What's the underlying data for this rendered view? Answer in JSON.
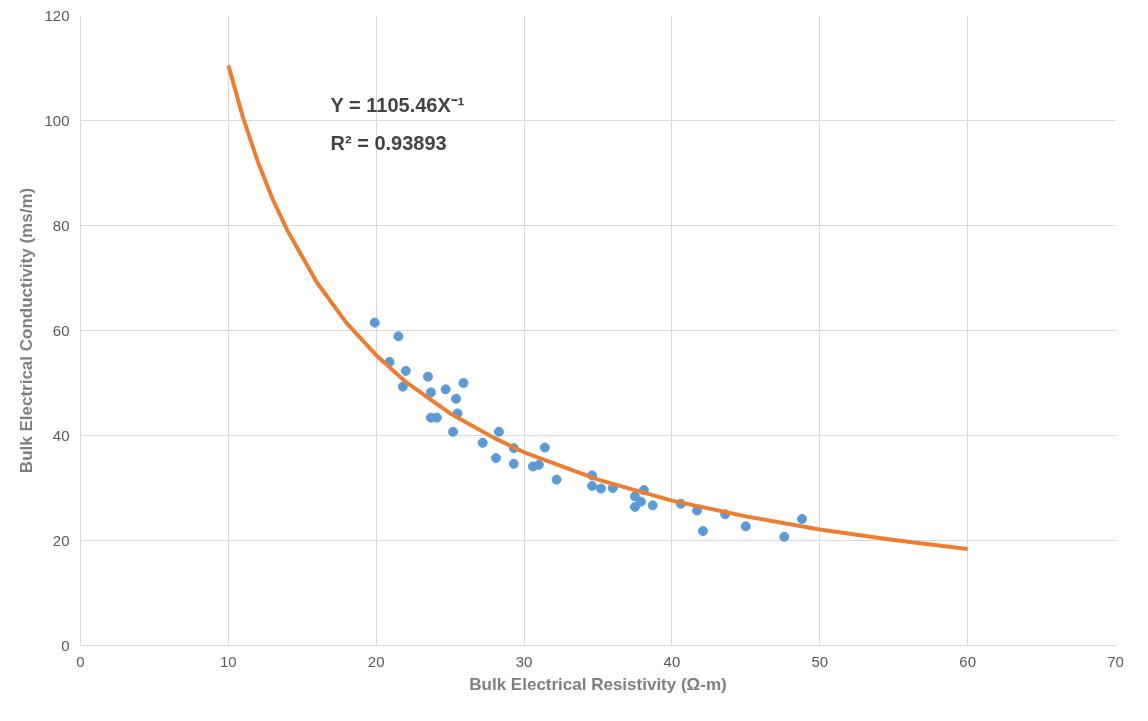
{
  "chart_data": {
    "type": "scatter",
    "xlabel": "Bulk Electrical Resistivity (Ω-m)",
    "ylabel": "Bulk Electrical Conductivity (ms/m)",
    "annotations": [
      "Y = 1105.46X⁻¹",
      "R² = 0.93893"
    ],
    "xlim": [
      0,
      70
    ],
    "xticks": [
      0,
      10,
      20,
      30,
      40,
      50,
      60,
      70
    ],
    "ylim": [
      0,
      120
    ],
    "yticks": [
      0,
      20,
      40,
      60,
      80,
      100,
      120
    ],
    "grid": true,
    "series": [
      {
        "color": "#5b9bd5",
        "marker": "circle",
        "x": [
          19.9,
          21.5,
          20.9,
          22,
          21.8,
          23.5,
          23.7,
          23.7,
          24.1,
          24.7,
          25.4,
          25.9,
          25.5,
          25.2,
          27.2,
          28.3,
          28.1,
          29.3,
          29.3,
          30.6,
          31,
          31.4,
          32.2,
          34.6,
          34.6,
          35.2,
          36,
          37.5,
          37.5,
          37.9,
          38.1,
          38.7,
          40.6,
          41.7,
          42.1,
          43.6,
          45,
          47.6,
          48.8
        ],
        "values": [
          61.5,
          58.9,
          54,
          52.3,
          49.3,
          51.2,
          48.2,
          43.4,
          43.4,
          48.8,
          47,
          50,
          44.2,
          40.7,
          38.6,
          40.7,
          35.7,
          37.6,
          34.6,
          34.1,
          34.4,
          37.7,
          31.6,
          32.4,
          30.4,
          29.9,
          30,
          28.4,
          26.4,
          27.4,
          29.6,
          26.7,
          27,
          25.7,
          21.8,
          25,
          22.7,
          20.7,
          24.1
        ]
      },
      {
        "type": "line",
        "marker": "none",
        "color": "#ed7d31",
        "x": [
          10,
          11,
          12,
          13,
          14,
          16,
          18,
          20,
          22,
          25,
          28,
          30,
          35,
          40,
          45,
          50,
          55,
          60
        ],
        "values": [
          110.5,
          100.5,
          92.1,
          85.0,
          79.0,
          69.1,
          61.4,
          55.3,
          50.2,
          44.2,
          39.5,
          36.8,
          31.6,
          27.6,
          24.6,
          22.1,
          20.1,
          18.4
        ]
      }
    ]
  }
}
